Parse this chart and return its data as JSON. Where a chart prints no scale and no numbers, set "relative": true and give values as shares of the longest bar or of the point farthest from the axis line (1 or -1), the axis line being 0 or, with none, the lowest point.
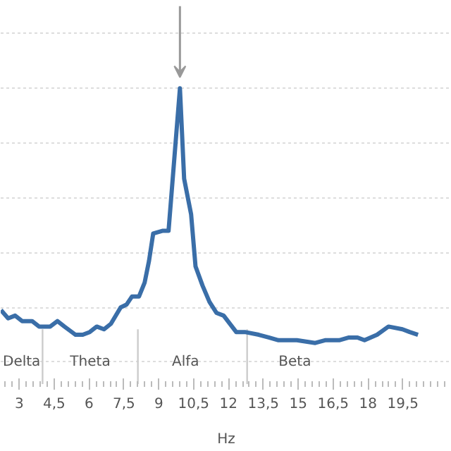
{
  "chart_data": {
    "type": "line",
    "relative": true,
    "xlabel": "Hz",
    "grid": "y",
    "line_style": "solid",
    "marker": "none",
    "x": [
      2.21,
      2.52,
      2.82,
      3.12,
      3.55,
      3.85,
      4.33,
      4.64,
      4.94,
      5.42,
      5.73,
      6.03,
      6.33,
      6.64,
      6.94,
      7.36,
      7.61,
      7.85,
      8.15,
      8.39,
      8.58,
      8.76,
      9.18,
      9.42,
      9.91,
      10.09,
      10.39,
      10.58,
      10.88,
      11.18,
      11.48,
      11.79,
      12.33,
      12.7,
      13.3,
      13.73,
      14.15,
      14.94,
      15.73,
      16.15,
      16.76,
      17.18,
      17.55,
      17.85,
      18.39,
      18.88,
      19.48,
      19.79,
      20.15
    ],
    "series": [
      {
        "color": "#3a6ea8",
        "values": [
          0.19,
          0.16,
          0.17,
          0.15,
          0.15,
          0.13,
          0.13,
          0.15,
          0.13,
          0.1,
          0.1,
          0.11,
          0.13,
          0.12,
          0.14,
          0.2,
          0.21,
          0.24,
          0.24,
          0.29,
          0.37,
          0.47,
          0.48,
          0.48,
          1.0,
          0.67,
          0.54,
          0.35,
          0.28,
          0.22,
          0.18,
          0.17,
          0.11,
          0.11,
          0.1,
          0.09,
          0.08,
          0.08,
          0.07,
          0.08,
          0.08,
          0.09,
          0.09,
          0.08,
          0.1,
          0.13,
          0.12,
          0.11,
          0.1
        ]
      }
    ],
    "xlim": [
      2.2,
      21.6
    ],
    "xticks": [
      3,
      {
        "value": 4.5,
        "label": "4,5"
      },
      6,
      {
        "value": 7.5,
        "label": "7,5"
      },
      9,
      {
        "value": 10.5,
        "label": "10,5"
      },
      12,
      {
        "value": 13.5,
        "label": "13,5"
      },
      15,
      {
        "value": 16.5,
        "label": "16,5"
      },
      18,
      {
        "value": 19.5,
        "label": "19,5"
      }
    ],
    "ref_lines": [
      {
        "axis": "x",
        "value": 4.0,
        "color": "#cccccc"
      },
      {
        "axis": "x",
        "value": 8.1,
        "color": "#cccccc"
      },
      {
        "axis": "x",
        "value": 12.8,
        "color": "#cccccc"
      }
    ],
    "annotations": [
      "Delta",
      "Theta",
      "Alfa",
      "Beta"
    ]
  }
}
